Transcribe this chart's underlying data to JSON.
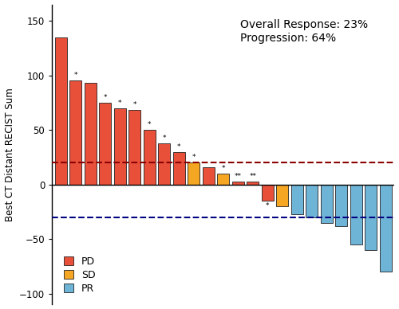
{
  "values": [
    135,
    95,
    93,
    75,
    70,
    68,
    50,
    38,
    30,
    20,
    16,
    10,
    3,
    3,
    -15,
    -20,
    -27,
    -30,
    -35,
    -38,
    -55,
    -60,
    -80
  ],
  "colors": [
    "#E8503A",
    "#E8503A",
    "#E8503A",
    "#E8503A",
    "#E8503A",
    "#E8503A",
    "#E8503A",
    "#E8503A",
    "#E8503A",
    "#F5A623",
    "#E8503A",
    "#F5A623",
    "#E8503A",
    "#E8503A",
    "#E8503A",
    "#F5A623",
    "#6EB4D6",
    "#6EB4D6",
    "#6EB4D6",
    "#6EB4D6",
    "#6EB4D6",
    "#6EB4D6",
    "#6EB4D6"
  ],
  "asterisks": [
    "",
    "*",
    "",
    "*",
    "*",
    "*",
    "*",
    "*",
    "*",
    "*",
    "",
    "*",
    "**",
    "**",
    "*",
    "",
    "",
    "",
    "",
    "",
    "",
    "",
    ""
  ],
  "pd_color": "#E8503A",
  "sd_color": "#F5A623",
  "pr_color": "#6EB4D6",
  "red_dline": 20,
  "blue_dline": -30,
  "ylim": [
    -110,
    165
  ],
  "yticks": [
    -100,
    -50,
    0,
    50,
    100,
    150
  ],
  "ylabel": "Best CT Distant RECIST Sum",
  "annotation": "Overall Response: 23%\nProgression: 64%",
  "pd_label": "PD",
  "sd_label": "SD",
  "pr_label": "PR"
}
